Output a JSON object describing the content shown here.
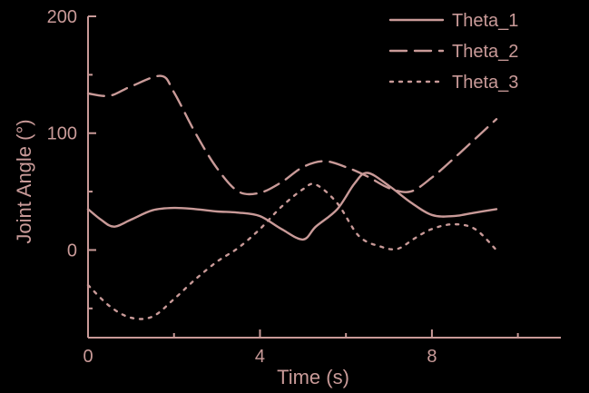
{
  "colors": {
    "background": "#000000",
    "foreground": "#c99a98"
  },
  "chart_data": {
    "type": "line",
    "xlabel": "Time (s)",
    "ylabel": "Joint Angle (°)",
    "xlim": [
      0,
      11
    ],
    "ylim": [
      -75,
      200
    ],
    "x_ticks": [
      0,
      4,
      8
    ],
    "y_ticks": [
      0,
      100,
      200
    ],
    "y_minor_ticks": [
      -50,
      50,
      150
    ],
    "grid": false,
    "legend_position": "top-right",
    "series": [
      {
        "name": "Theta_1",
        "style": "solid",
        "x": [
          0,
          0.3,
          0.6,
          1.0,
          1.5,
          2.0,
          2.5,
          3.0,
          3.5,
          4.0,
          4.5,
          5.0,
          5.3,
          5.8,
          6.2,
          6.5,
          7.0,
          7.5,
          8.0,
          8.5,
          9.0,
          9.5
        ],
        "y": [
          35,
          26,
          20,
          26,
          34,
          36,
          35,
          33,
          32,
          29,
          18,
          9,
          20,
          35,
          57,
          66,
          55,
          41,
          30,
          29,
          32,
          35
        ]
      },
      {
        "name": "Theta_2",
        "style": "dashed",
        "x": [
          0,
          0.5,
          1.0,
          1.7,
          2.0,
          2.5,
          3.0,
          3.5,
          4.0,
          4.5,
          5.0,
          5.5,
          6.0,
          6.5,
          7.0,
          7.5,
          8.0,
          8.5,
          9.0,
          9.5
        ],
        "y": [
          134,
          132,
          140,
          149,
          135,
          100,
          70,
          50,
          49,
          58,
          71,
          76,
          71,
          63,
          53,
          50,
          62,
          78,
          95,
          112
        ]
      },
      {
        "name": "Theta_3",
        "style": "dotted",
        "x": [
          0,
          0.5,
          1.0,
          1.5,
          2.0,
          2.5,
          3.0,
          3.5,
          4.0,
          4.5,
          5.0,
          5.3,
          5.8,
          6.3,
          6.8,
          7.2,
          7.6,
          8.0,
          8.5,
          9.0,
          9.5
        ],
        "y": [
          -30,
          -48,
          -58,
          -57,
          -42,
          -25,
          -10,
          2,
          18,
          37,
          52,
          56,
          40,
          12,
          3,
          1,
          10,
          18,
          22,
          18,
          0
        ]
      }
    ]
  }
}
